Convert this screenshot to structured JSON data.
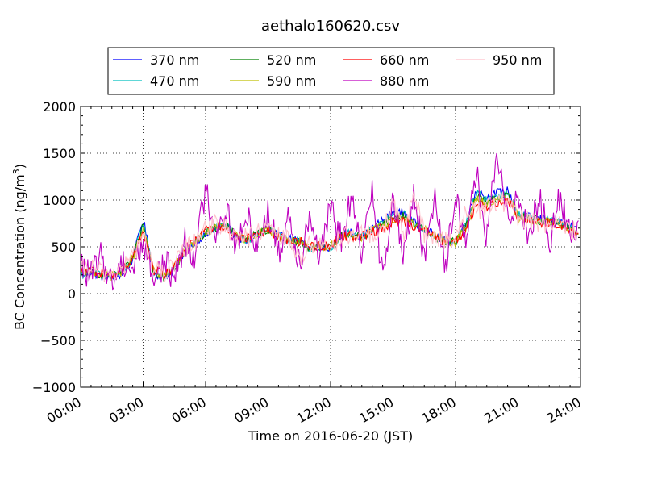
{
  "chart_data": {
    "type": "line",
    "title": "aethalo160620.csv",
    "xlabel": "Time on 2016-06-20 (JST)",
    "ylabel": "BC Concentration (ng/m³)",
    "ylabel_parts": {
      "main": "BC Concentration (ng/m",
      "sup": "3",
      "end": ")"
    },
    "xlim": [
      "00:00",
      "24:00"
    ],
    "ylim": [
      -1000,
      2000
    ],
    "x_ticks": [
      "00:00",
      "03:00",
      "06:00",
      "09:00",
      "12:00",
      "15:00",
      "18:00",
      "21:00",
      "24:00"
    ],
    "y_ticks": [
      2000,
      1500,
      1000,
      500,
      0,
      -500,
      -1000
    ],
    "y_tick_labels": [
      "2000",
      "1500",
      "1000",
      "500",
      "0",
      "−500",
      "−1000"
    ],
    "grid": true,
    "legend_position": "top-center",
    "x_hours": [
      0.0,
      0.5,
      1.0,
      1.5,
      2.0,
      2.5,
      3.0,
      3.5,
      4.0,
      4.5,
      5.0,
      5.5,
      6.0,
      6.5,
      7.0,
      7.5,
      8.0,
      8.5,
      9.0,
      9.5,
      10.0,
      10.5,
      11.0,
      11.5,
      12.0,
      12.5,
      13.0,
      13.5,
      14.0,
      14.5,
      15.0,
      15.5,
      16.0,
      16.5,
      17.0,
      17.5,
      18.0,
      18.5,
      19.0,
      19.5,
      20.0,
      20.5,
      21.0,
      21.5,
      22.0,
      22.5,
      23.0,
      23.5,
      23.9
    ],
    "series": [
      {
        "name": "370 nm",
        "color": "#0000ff",
        "values": [
          190,
          230,
          180,
          170,
          210,
          360,
          800,
          220,
          170,
          260,
          450,
          560,
          620,
          700,
          730,
          600,
          560,
          650,
          700,
          620,
          590,
          560,
          470,
          500,
          480,
          620,
          660,
          600,
          700,
          780,
          860,
          870,
          760,
          700,
          620,
          560,
          560,
          760,
          1120,
          1020,
          1080,
          1100,
          850,
          820,
          800,
          790,
          760,
          720,
          640
        ]
      },
      {
        "name": "470 nm",
        "color": "#00bfbf",
        "values": [
          200,
          240,
          190,
          180,
          220,
          370,
          760,
          230,
          180,
          270,
          450,
          560,
          640,
          710,
          730,
          600,
          570,
          650,
          690,
          610,
          580,
          560,
          480,
          500,
          490,
          620,
          650,
          600,
          690,
          760,
          840,
          850,
          750,
          690,
          620,
          560,
          560,
          740,
          1080,
          1000,
          1050,
          1070,
          840,
          810,
          790,
          780,
          750,
          710,
          640
        ]
      },
      {
        "name": "520 nm",
        "color": "#008000",
        "values": [
          205,
          245,
          195,
          185,
          225,
          375,
          720,
          235,
          185,
          270,
          450,
          555,
          650,
          710,
          720,
          600,
          575,
          645,
          685,
          610,
          575,
          555,
          485,
          500,
          495,
          615,
          640,
          600,
          680,
          740,
          820,
          830,
          745,
          685,
          615,
          560,
          555,
          720,
          1040,
          980,
          1020,
          1050,
          830,
          800,
          780,
          770,
          740,
          705,
          635
        ]
      },
      {
        "name": "590 nm",
        "color": "#bfbf00",
        "values": [
          210,
          250,
          200,
          190,
          230,
          380,
          690,
          240,
          190,
          275,
          450,
          555,
          660,
          715,
          715,
          605,
          580,
          640,
          680,
          610,
          575,
          555,
          490,
          505,
          500,
          610,
          635,
          605,
          675,
          730,
          800,
          815,
          740,
          680,
          615,
          560,
          555,
          700,
          1010,
          960,
          1000,
          1030,
          820,
          795,
          775,
          765,
          735,
          700,
          635
        ]
      },
      {
        "name": "660 nm",
        "color": "#ff0000",
        "values": [
          220,
          260,
          210,
          200,
          240,
          390,
          650,
          250,
          200,
          280,
          460,
          560,
          690,
          720,
          710,
          610,
          590,
          640,
          670,
          610,
          570,
          560,
          500,
          510,
          510,
          610,
          620,
          610,
          660,
          700,
          760,
          780,
          730,
          670,
          610,
          560,
          560,
          680,
          960,
          940,
          980,
          1010,
          810,
          790,
          770,
          760,
          730,
          700,
          640
        ]
      },
      {
        "name": "880 nm",
        "color": "#bf00bf",
        "values": [
          300,
          180,
          400,
          120,
          350,
          260,
          560,
          160,
          330,
          180,
          560,
          420,
          1120,
          650,
          920,
          480,
          820,
          520,
          900,
          420,
          860,
          330,
          860,
          380,
          900,
          580,
          1020,
          360,
          1220,
          150,
          1020,
          360,
          1100,
          320,
          1120,
          280,
          1000,
          640,
          1280,
          560,
          1500,
          760,
          1100,
          620,
          1050,
          540,
          1030,
          620,
          780
        ]
      },
      {
        "name": "950 nm",
        "color": "#ffc0cb",
        "values": [
          240,
          280,
          230,
          220,
          260,
          410,
          620,
          270,
          220,
          290,
          480,
          570,
          720,
          740,
          700,
          620,
          600,
          640,
          660,
          620,
          560,
          380,
          520,
          520,
          520,
          600,
          610,
          620,
          640,
          660,
          1000,
          600,
          1100,
          620,
          600,
          580,
          600,
          900,
          880,
          920,
          960,
          990,
          800,
          780,
          760,
          750,
          720,
          690,
          650
        ]
      }
    ]
  }
}
